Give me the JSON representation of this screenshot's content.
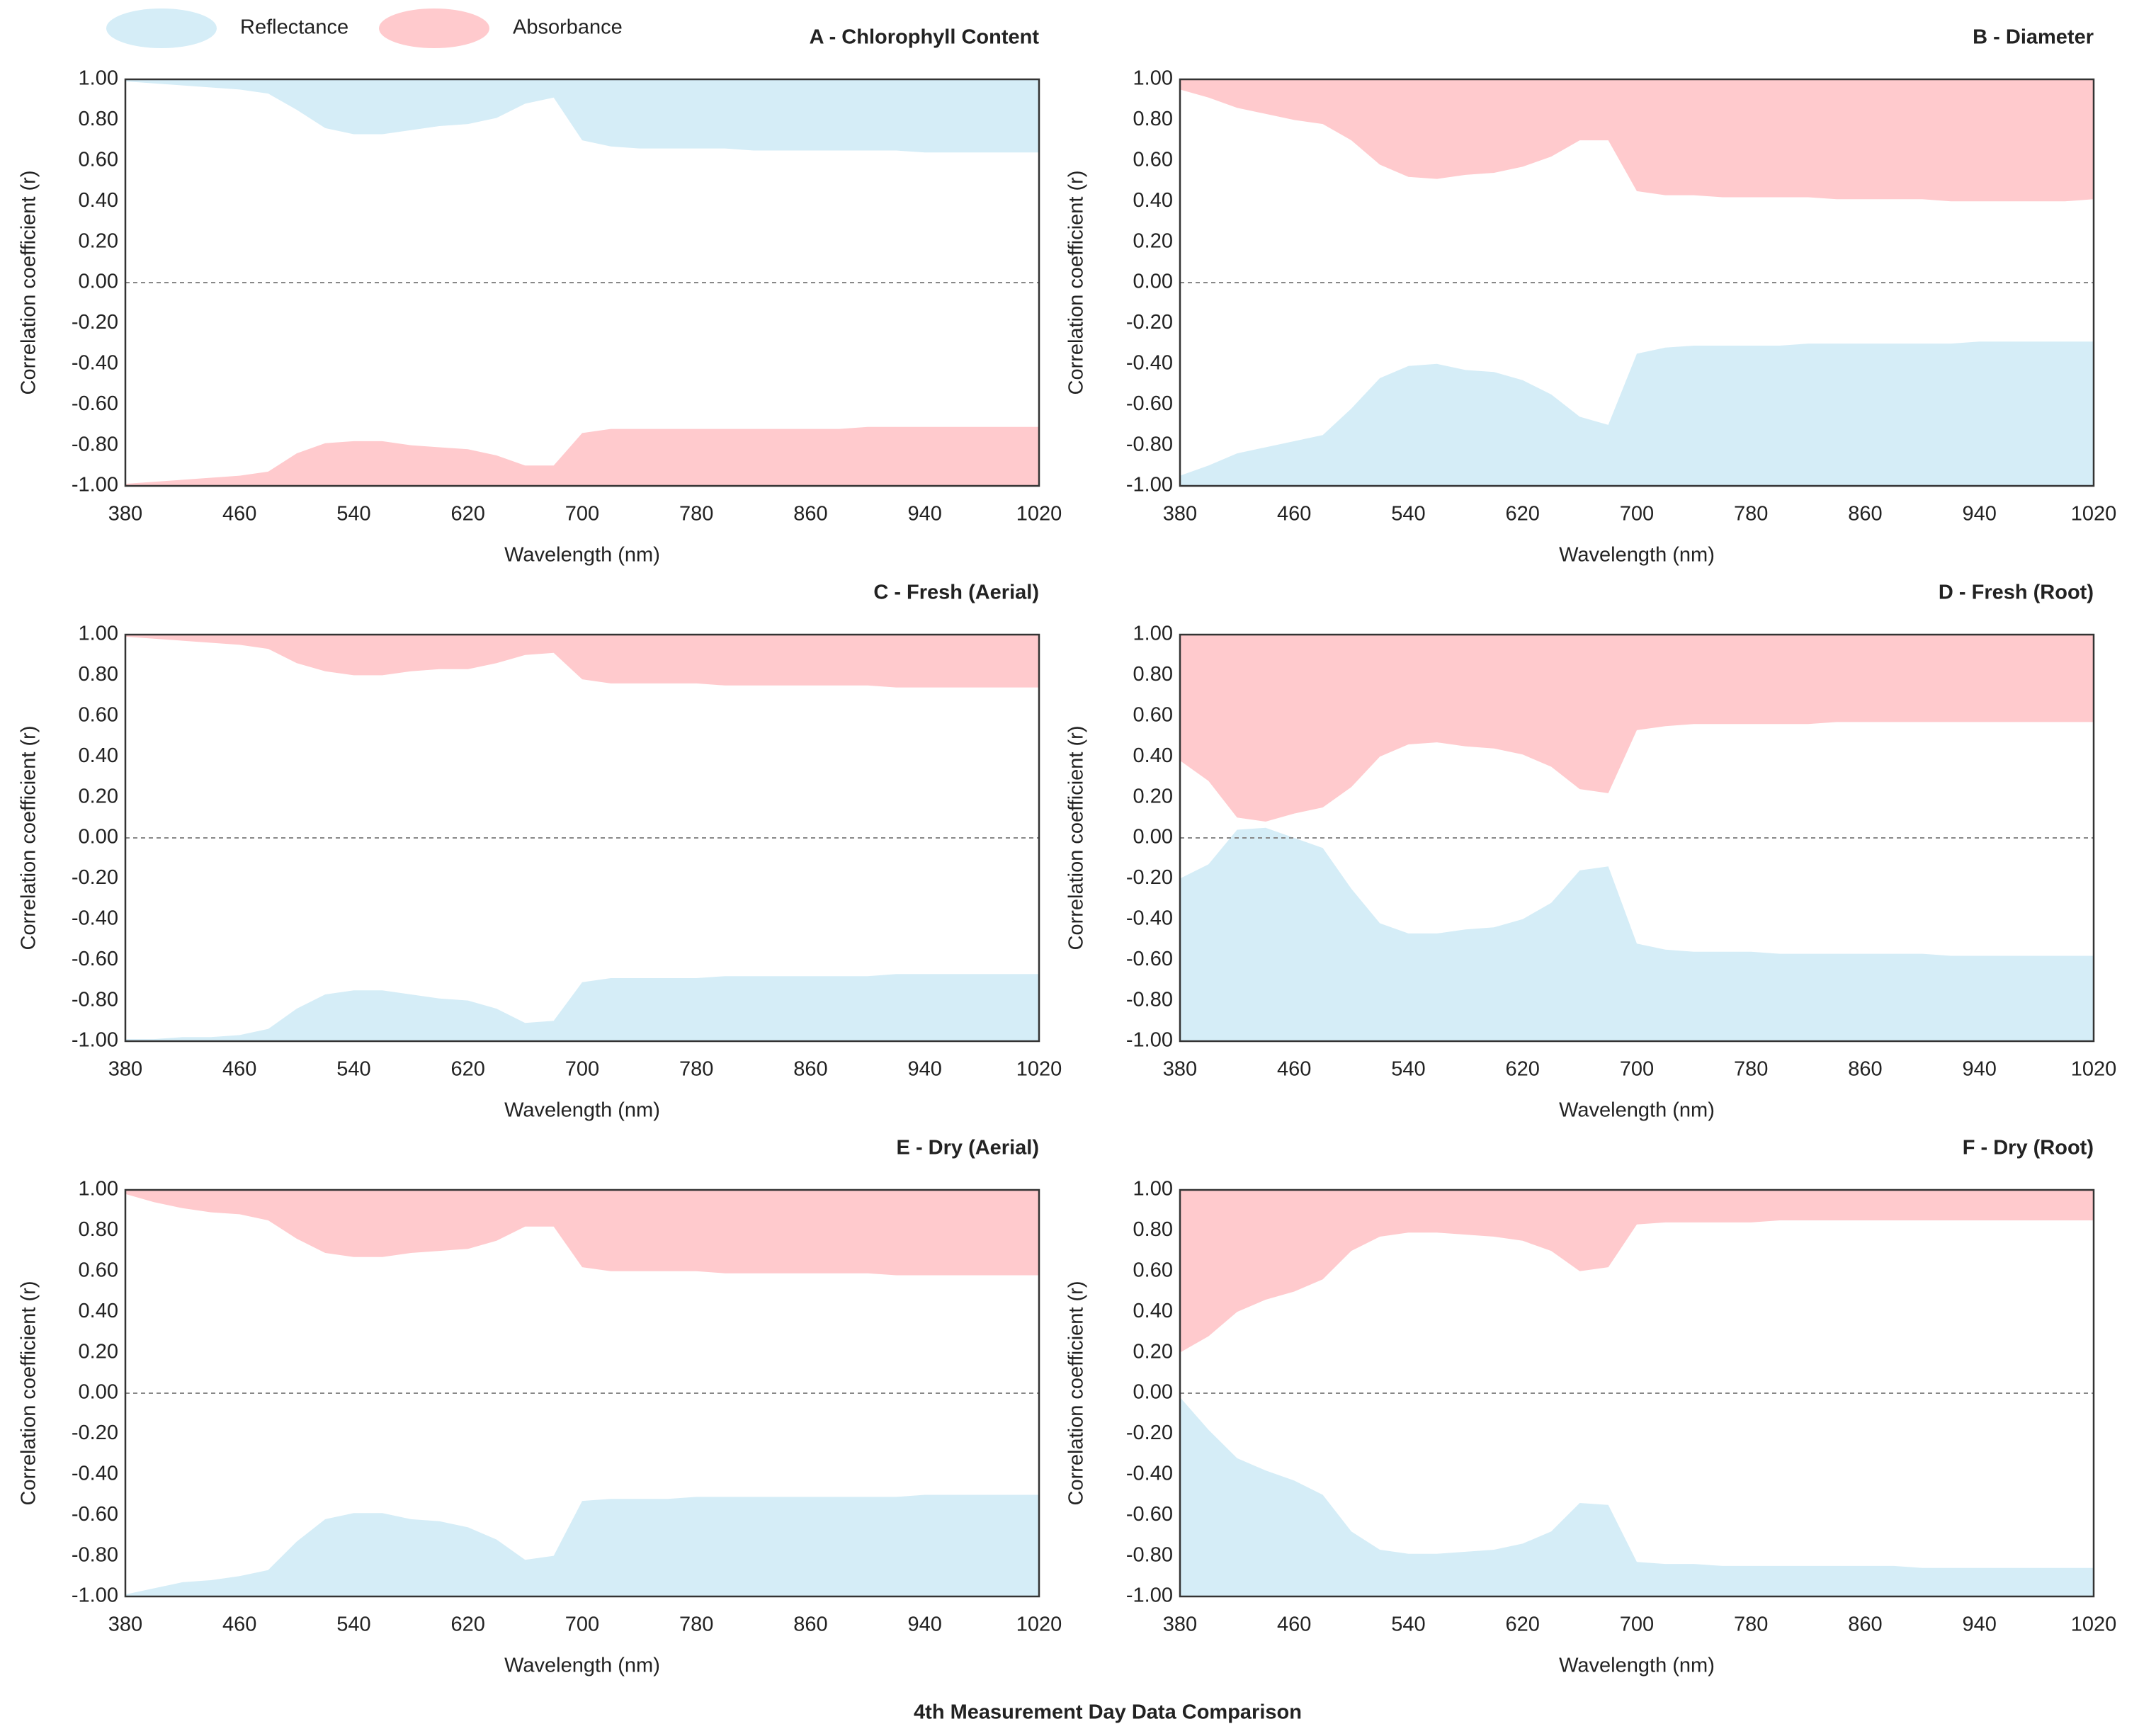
{
  "figure_title": "4th Measurement Day Data Comparison",
  "legend_position": "top-left",
  "chart_data": [
    {
      "type": "area",
      "title": "A - Chlorophyll Content",
      "x_label": "Wavelength (nm)",
      "y_label": "Correlation coefficient (r)",
      "xlim": [
        380,
        1020
      ],
      "xticks": [
        380,
        460,
        540,
        620,
        700,
        780,
        860,
        940,
        1020
      ],
      "ylim": [
        -1,
        1
      ],
      "yticks": [
        {
          "value": -1,
          "label": "-1.00"
        },
        {
          "value": -0.8,
          "label": "-0.80"
        },
        {
          "value": -0.6,
          "label": "-0.60"
        },
        {
          "value": -0.4,
          "label": "-0.40"
        },
        {
          "value": -0.2,
          "label": "-0.20"
        },
        {
          "value": 0,
          "label": "0.00"
        },
        {
          "value": 0.2,
          "label": "0.20"
        },
        {
          "value": 0.4,
          "label": "0.40"
        },
        {
          "value": 0.6,
          "label": "0.60"
        },
        {
          "value": 0.8,
          "label": "0.80"
        },
        {
          "value": 1,
          "label": "1.00"
        }
      ],
      "zero_line": true,
      "zero_label_color": "#ff0000",
      "x": [
        380,
        400,
        420,
        440,
        460,
        480,
        500,
        520,
        540,
        560,
        580,
        600,
        620,
        640,
        660,
        680,
        700,
        720,
        740,
        760,
        780,
        800,
        820,
        840,
        860,
        880,
        900,
        920,
        940,
        960,
        980,
        1000,
        1020
      ],
      "series": [
        {
          "name": "Reflectance",
          "color": "#d5edf7",
          "values": [
            0.99,
            0.98,
            0.97,
            0.96,
            0.95,
            0.93,
            0.85,
            0.76,
            0.73,
            0.73,
            0.75,
            0.77,
            0.78,
            0.81,
            0.88,
            0.91,
            0.7,
            0.67,
            0.66,
            0.66,
            0.66,
            0.66,
            0.65,
            0.65,
            0.65,
            0.65,
            0.65,
            0.65,
            0.64,
            0.64,
            0.64,
            0.64,
            0.64
          ]
        },
        {
          "name": "Absorbance",
          "color": "#ffcacd",
          "values": [
            -0.99,
            -0.98,
            -0.97,
            -0.96,
            -0.95,
            -0.93,
            -0.84,
            -0.79,
            -0.78,
            -0.78,
            -0.8,
            -0.81,
            -0.82,
            -0.85,
            -0.9,
            -0.9,
            -0.74,
            -0.72,
            -0.72,
            -0.72,
            -0.72,
            -0.72,
            -0.72,
            -0.72,
            -0.72,
            -0.72,
            -0.71,
            -0.71,
            -0.71,
            -0.71,
            -0.71,
            -0.71,
            -0.71
          ]
        }
      ]
    },
    {
      "type": "area",
      "title": "B - Diameter",
      "x_label": "Wavelength (nm)",
      "y_label": "Correlation coefficient (r)",
      "xlim": [
        380,
        1020
      ],
      "xticks": [
        380,
        460,
        540,
        620,
        700,
        780,
        860,
        940,
        1020
      ],
      "ylim": [
        -1,
        1
      ],
      "yticks": [
        {
          "value": -1,
          "label": "-1.00"
        },
        {
          "value": -0.8,
          "label": "-0.80"
        },
        {
          "value": -0.6,
          "label": "-0.60"
        },
        {
          "value": -0.4,
          "label": "-0.40"
        },
        {
          "value": -0.2,
          "label": "-0.20"
        },
        {
          "value": 0,
          "label": "0.00"
        },
        {
          "value": 0.2,
          "label": "0.20"
        },
        {
          "value": 0.4,
          "label": "0.40"
        },
        {
          "value": 0.6,
          "label": "0.60"
        },
        {
          "value": 0.8,
          "label": "0.80"
        },
        {
          "value": 1,
          "label": "1.00"
        }
      ],
      "zero_line": true,
      "zero_label_color": "#ff0000",
      "x": [
        380,
        400,
        420,
        440,
        460,
        480,
        500,
        520,
        540,
        560,
        580,
        600,
        620,
        640,
        660,
        680,
        700,
        720,
        740,
        760,
        780,
        800,
        820,
        840,
        860,
        880,
        900,
        920,
        940,
        960,
        980,
        1000,
        1020
      ],
      "series": [
        {
          "name": "Reflectance",
          "color": "#d5edf7",
          "values": [
            -0.95,
            -0.9,
            -0.84,
            -0.81,
            -0.78,
            -0.75,
            -0.62,
            -0.47,
            -0.41,
            -0.4,
            -0.43,
            -0.44,
            -0.48,
            -0.55,
            -0.66,
            -0.7,
            -0.35,
            -0.32,
            -0.31,
            -0.31,
            -0.31,
            -0.31,
            -0.3,
            -0.3,
            -0.3,
            -0.3,
            -0.3,
            -0.3,
            -0.29,
            -0.29,
            -0.29,
            -0.29,
            -0.29
          ]
        },
        {
          "name": "Absorbance",
          "color": "#ffcacd",
          "values": [
            0.95,
            0.91,
            0.86,
            0.83,
            0.8,
            0.78,
            0.7,
            0.58,
            0.52,
            0.51,
            0.53,
            0.54,
            0.57,
            0.62,
            0.7,
            0.7,
            0.45,
            0.43,
            0.43,
            0.42,
            0.42,
            0.42,
            0.42,
            0.41,
            0.41,
            0.41,
            0.41,
            0.4,
            0.4,
            0.4,
            0.4,
            0.4,
            0.41
          ]
        }
      ]
    },
    {
      "type": "area",
      "title": "C - Fresh (Aerial)",
      "x_label": "Wavelength (nm)",
      "y_label": "Correlation coefficient (r)",
      "xlim": [
        380,
        1020
      ],
      "xticks": [
        380,
        460,
        540,
        620,
        700,
        780,
        860,
        940,
        1020
      ],
      "ylim": [
        -1,
        1
      ],
      "yticks": [
        {
          "value": -1,
          "label": "-1.00"
        },
        {
          "value": -0.8,
          "label": "-0.80"
        },
        {
          "value": -0.6,
          "label": "-0.60"
        },
        {
          "value": -0.4,
          "label": "-0.40"
        },
        {
          "value": -0.2,
          "label": "-0.20"
        },
        {
          "value": 0,
          "label": "0.00"
        },
        {
          "value": 0.2,
          "label": "0.20"
        },
        {
          "value": 0.4,
          "label": "0.40"
        },
        {
          "value": 0.6,
          "label": "0.60"
        },
        {
          "value": 0.8,
          "label": "0.80"
        },
        {
          "value": 1,
          "label": "1.00"
        }
      ],
      "zero_line": true,
      "zero_label_color": "#ff0000",
      "x": [
        380,
        400,
        420,
        440,
        460,
        480,
        500,
        520,
        540,
        560,
        580,
        600,
        620,
        640,
        660,
        680,
        700,
        720,
        740,
        760,
        780,
        800,
        820,
        840,
        860,
        880,
        900,
        920,
        940,
        960,
        980,
        1000,
        1020
      ],
      "series": [
        {
          "name": "Reflectance",
          "color": "#d5edf7",
          "values": [
            -0.99,
            -0.99,
            -0.98,
            -0.98,
            -0.97,
            -0.94,
            -0.84,
            -0.77,
            -0.75,
            -0.75,
            -0.77,
            -0.79,
            -0.8,
            -0.84,
            -0.91,
            -0.9,
            -0.71,
            -0.69,
            -0.69,
            -0.69,
            -0.69,
            -0.68,
            -0.68,
            -0.68,
            -0.68,
            -0.68,
            -0.68,
            -0.67,
            -0.67,
            -0.67,
            -0.67,
            -0.67,
            -0.67
          ]
        },
        {
          "name": "Absorbance",
          "color": "#ffcacd",
          "values": [
            0.99,
            0.98,
            0.97,
            0.96,
            0.95,
            0.93,
            0.86,
            0.82,
            0.8,
            0.8,
            0.82,
            0.83,
            0.83,
            0.86,
            0.9,
            0.91,
            0.78,
            0.76,
            0.76,
            0.76,
            0.76,
            0.75,
            0.75,
            0.75,
            0.75,
            0.75,
            0.75,
            0.74,
            0.74,
            0.74,
            0.74,
            0.74,
            0.74
          ]
        }
      ]
    },
    {
      "type": "area",
      "title": "D - Fresh (Root)",
      "x_label": "Wavelength (nm)",
      "y_label": "Correlation coefficient (r)",
      "xlim": [
        380,
        1020
      ],
      "xticks": [
        380,
        460,
        540,
        620,
        700,
        780,
        860,
        940,
        1020
      ],
      "ylim": [
        -1,
        1
      ],
      "yticks": [
        {
          "value": -1,
          "label": "-1.00"
        },
        {
          "value": -0.8,
          "label": "-0.80"
        },
        {
          "value": -0.6,
          "label": "-0.60"
        },
        {
          "value": -0.4,
          "label": "-0.40"
        },
        {
          "value": -0.2,
          "label": "-0.20"
        },
        {
          "value": 0,
          "label": "0.00"
        },
        {
          "value": 0.2,
          "label": "0.20"
        },
        {
          "value": 0.4,
          "label": "0.40"
        },
        {
          "value": 0.6,
          "label": "0.60"
        },
        {
          "value": 0.8,
          "label": "0.80"
        },
        {
          "value": 1,
          "label": "1.00"
        }
      ],
      "zero_line": true,
      "zero_label_color": "#ff0000",
      "x": [
        380,
        400,
        420,
        440,
        460,
        480,
        500,
        520,
        540,
        560,
        580,
        600,
        620,
        640,
        660,
        680,
        700,
        720,
        740,
        760,
        780,
        800,
        820,
        840,
        860,
        880,
        900,
        920,
        940,
        960,
        980,
        1000,
        1020
      ],
      "series": [
        {
          "name": "Reflectance",
          "color": "#d5edf7",
          "values": [
            -0.2,
            -0.13,
            0.04,
            0.05,
            0.0,
            -0.05,
            -0.25,
            -0.42,
            -0.47,
            -0.47,
            -0.45,
            -0.44,
            -0.4,
            -0.32,
            -0.16,
            -0.14,
            -0.52,
            -0.55,
            -0.56,
            -0.56,
            -0.56,
            -0.57,
            -0.57,
            -0.57,
            -0.57,
            -0.57,
            -0.57,
            -0.58,
            -0.58,
            -0.58,
            -0.58,
            -0.58,
            -0.58
          ]
        },
        {
          "name": "Absorbance",
          "color": "#ffcacd",
          "values": [
            0.38,
            0.28,
            0.1,
            0.08,
            0.12,
            0.15,
            0.25,
            0.4,
            0.46,
            0.47,
            0.45,
            0.44,
            0.41,
            0.35,
            0.24,
            0.22,
            0.53,
            0.55,
            0.56,
            0.56,
            0.56,
            0.56,
            0.56,
            0.57,
            0.57,
            0.57,
            0.57,
            0.57,
            0.57,
            0.57,
            0.57,
            0.57,
            0.57
          ]
        }
      ]
    },
    {
      "type": "area",
      "title": "E - Dry (Aerial)",
      "x_label": "Wavelength (nm)",
      "y_label": "Correlation coefficient (r)",
      "xlim": [
        380,
        1020
      ],
      "xticks": [
        380,
        460,
        540,
        620,
        700,
        780,
        860,
        940,
        1020
      ],
      "ylim": [
        -1,
        1
      ],
      "yticks": [
        {
          "value": -1,
          "label": "-1.00"
        },
        {
          "value": -0.8,
          "label": "-0.80"
        },
        {
          "value": -0.6,
          "label": "-0.60"
        },
        {
          "value": -0.4,
          "label": "-0.40"
        },
        {
          "value": -0.2,
          "label": "-0.20"
        },
        {
          "value": 0,
          "label": "0.00"
        },
        {
          "value": 0.2,
          "label": "0.20"
        },
        {
          "value": 0.4,
          "label": "0.40"
        },
        {
          "value": 0.6,
          "label": "0.60"
        },
        {
          "value": 0.8,
          "label": "0.80"
        },
        {
          "value": 1,
          "label": "1.00"
        }
      ],
      "zero_line": true,
      "zero_label_color": "#ff0000",
      "x": [
        380,
        400,
        420,
        440,
        460,
        480,
        500,
        520,
        540,
        560,
        580,
        600,
        620,
        640,
        660,
        680,
        700,
        720,
        740,
        760,
        780,
        800,
        820,
        840,
        860,
        880,
        900,
        920,
        940,
        960,
        980,
        1000,
        1020
      ],
      "series": [
        {
          "name": "Reflectance",
          "color": "#d5edf7",
          "values": [
            -0.99,
            -0.96,
            -0.93,
            -0.92,
            -0.9,
            -0.87,
            -0.73,
            -0.62,
            -0.59,
            -0.59,
            -0.62,
            -0.63,
            -0.66,
            -0.72,
            -0.82,
            -0.8,
            -0.53,
            -0.52,
            -0.52,
            -0.52,
            -0.51,
            -0.51,
            -0.51,
            -0.51,
            -0.51,
            -0.51,
            -0.51,
            -0.51,
            -0.5,
            -0.5,
            -0.5,
            -0.5,
            -0.5
          ]
        },
        {
          "name": "Absorbance",
          "color": "#ffcacd",
          "values": [
            0.98,
            0.94,
            0.91,
            0.89,
            0.88,
            0.85,
            0.76,
            0.69,
            0.67,
            0.67,
            0.69,
            0.7,
            0.71,
            0.75,
            0.82,
            0.82,
            0.62,
            0.6,
            0.6,
            0.6,
            0.6,
            0.59,
            0.59,
            0.59,
            0.59,
            0.59,
            0.59,
            0.58,
            0.58,
            0.58,
            0.58,
            0.58,
            0.58
          ]
        }
      ]
    },
    {
      "type": "area",
      "title": "F - Dry (Root)",
      "x_label": "Wavelength (nm)",
      "y_label": "Correlation coefficient (r)",
      "xlim": [
        380,
        1020
      ],
      "xticks": [
        380,
        460,
        540,
        620,
        700,
        780,
        860,
        940,
        1020
      ],
      "ylim": [
        -1,
        1
      ],
      "yticks": [
        {
          "value": -1,
          "label": "-1.00"
        },
        {
          "value": -0.8,
          "label": "-0.80"
        },
        {
          "value": -0.6,
          "label": "-0.60"
        },
        {
          "value": -0.4,
          "label": "-0.40"
        },
        {
          "value": -0.2,
          "label": "-0.20"
        },
        {
          "value": 0,
          "label": "0.00"
        },
        {
          "value": 0.2,
          "label": "0.20"
        },
        {
          "value": 0.4,
          "label": "0.40"
        },
        {
          "value": 0.6,
          "label": "0.60"
        },
        {
          "value": 0.8,
          "label": "0.80"
        },
        {
          "value": 1,
          "label": "1.00"
        }
      ],
      "zero_line": true,
      "zero_label_color": "#ff0000",
      "x": [
        380,
        400,
        420,
        440,
        460,
        480,
        500,
        520,
        540,
        560,
        580,
        600,
        620,
        640,
        660,
        680,
        700,
        720,
        740,
        760,
        780,
        800,
        820,
        840,
        860,
        880,
        900,
        920,
        940,
        960,
        980,
        1000,
        1020
      ],
      "series": [
        {
          "name": "Reflectance",
          "color": "#d5edf7",
          "values": [
            -0.02,
            -0.18,
            -0.32,
            -0.38,
            -0.43,
            -0.5,
            -0.68,
            -0.77,
            -0.79,
            -0.79,
            -0.78,
            -0.77,
            -0.74,
            -0.68,
            -0.54,
            -0.55,
            -0.83,
            -0.84,
            -0.84,
            -0.85,
            -0.85,
            -0.85,
            -0.85,
            -0.85,
            -0.85,
            -0.85,
            -0.86,
            -0.86,
            -0.86,
            -0.86,
            -0.86,
            -0.86,
            -0.86
          ]
        },
        {
          "name": "Absorbance",
          "color": "#ffcacd",
          "values": [
            0.2,
            0.28,
            0.4,
            0.46,
            0.5,
            0.56,
            0.7,
            0.77,
            0.79,
            0.79,
            0.78,
            0.77,
            0.75,
            0.7,
            0.6,
            0.62,
            0.83,
            0.84,
            0.84,
            0.84,
            0.84,
            0.85,
            0.85,
            0.85,
            0.85,
            0.85,
            0.85,
            0.85,
            0.85,
            0.85,
            0.85,
            0.85,
            0.85
          ]
        }
      ]
    }
  ]
}
